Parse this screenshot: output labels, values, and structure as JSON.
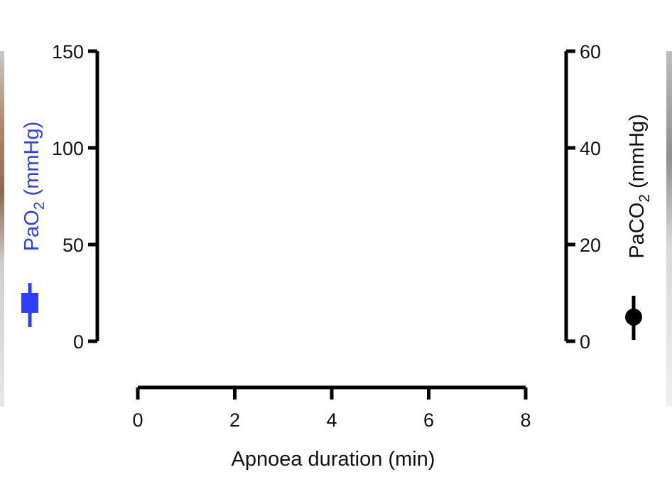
{
  "chart_data": {
    "type": "line",
    "title": "",
    "xlabel": "Apnoea duration (min)",
    "x_ticks": [
      "0",
      "2",
      "4",
      "6",
      "8"
    ],
    "xlim": [
      0,
      8
    ],
    "y_left": {
      "label_main": "PaO",
      "label_sub": "2",
      "label_units": " (mmHg)",
      "ticks": [
        "0",
        "50",
        "100",
        "150"
      ],
      "ylim": [
        0,
        150
      ],
      "color": "#2f3ff5",
      "marker": "square"
    },
    "y_right": {
      "label_main": "PaCO",
      "label_sub": "2",
      "label_units": " (mmHg)",
      "ticks": [
        "0",
        "20",
        "40",
        "60"
      ],
      "ylim": [
        0,
        60
      ],
      "color": "#000000",
      "marker": "circle"
    },
    "series": [],
    "grid": false
  }
}
